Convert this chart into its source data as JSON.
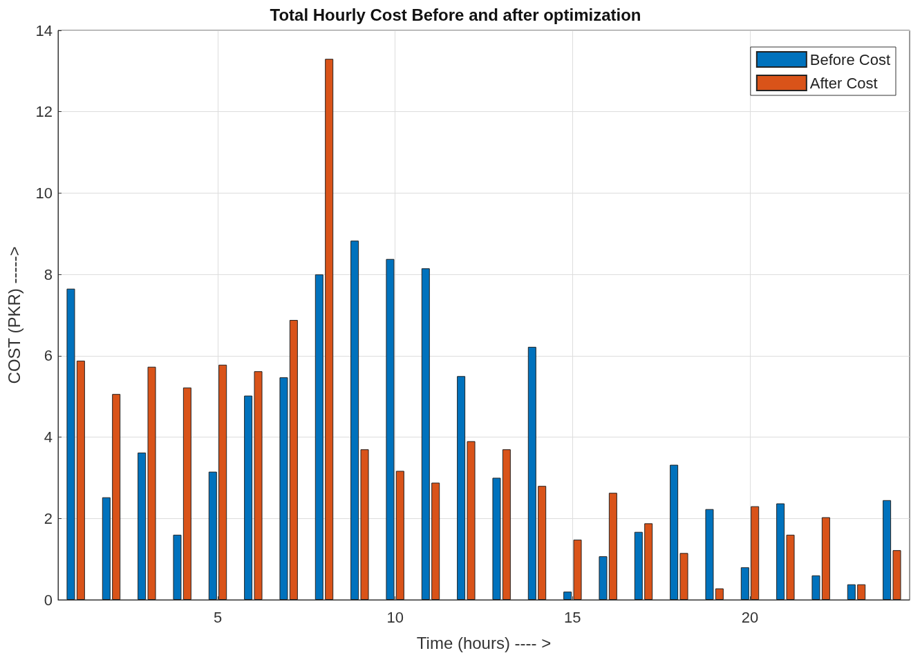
{
  "chart_data": {
    "type": "bar",
    "title": "Total Hourly Cost Before and after optimization",
    "xlabel": "Time (hours) ---- >",
    "ylabel": "COST (PKR) ----->",
    "x": [
      1,
      2,
      3,
      4,
      5,
      6,
      7,
      8,
      9,
      10,
      11,
      12,
      13,
      14,
      15,
      16,
      17,
      18,
      19,
      20,
      21,
      22,
      23,
      24
    ],
    "series": [
      {
        "name": "Before Cost",
        "color": "#0072bd",
        "values": [
          7.65,
          2.52,
          3.62,
          1.6,
          3.15,
          5.02,
          5.47,
          8.0,
          8.83,
          8.38,
          8.15,
          5.5,
          3.0,
          6.22,
          0.2,
          1.07,
          1.67,
          3.32,
          2.23,
          0.8,
          2.37,
          0.6,
          0.38,
          2.45
        ]
      },
      {
        "name": "After Cost",
        "color": "#d95319",
        "values": [
          5.88,
          5.06,
          5.73,
          5.22,
          5.78,
          5.62,
          6.88,
          13.3,
          3.7,
          3.17,
          2.88,
          3.9,
          3.7,
          2.8,
          1.48,
          2.63,
          1.88,
          1.15,
          0.28,
          2.3,
          1.6,
          2.03,
          0.38,
          1.22
        ]
      }
    ],
    "xlim": [
      0.5,
      24.5
    ],
    "xticks": [
      5,
      10,
      15,
      20
    ],
    "ylim": [
      0,
      14
    ],
    "yticks": [
      0,
      2,
      4,
      6,
      8,
      10,
      12,
      14
    ],
    "grid": true,
    "legend": "top right"
  }
}
